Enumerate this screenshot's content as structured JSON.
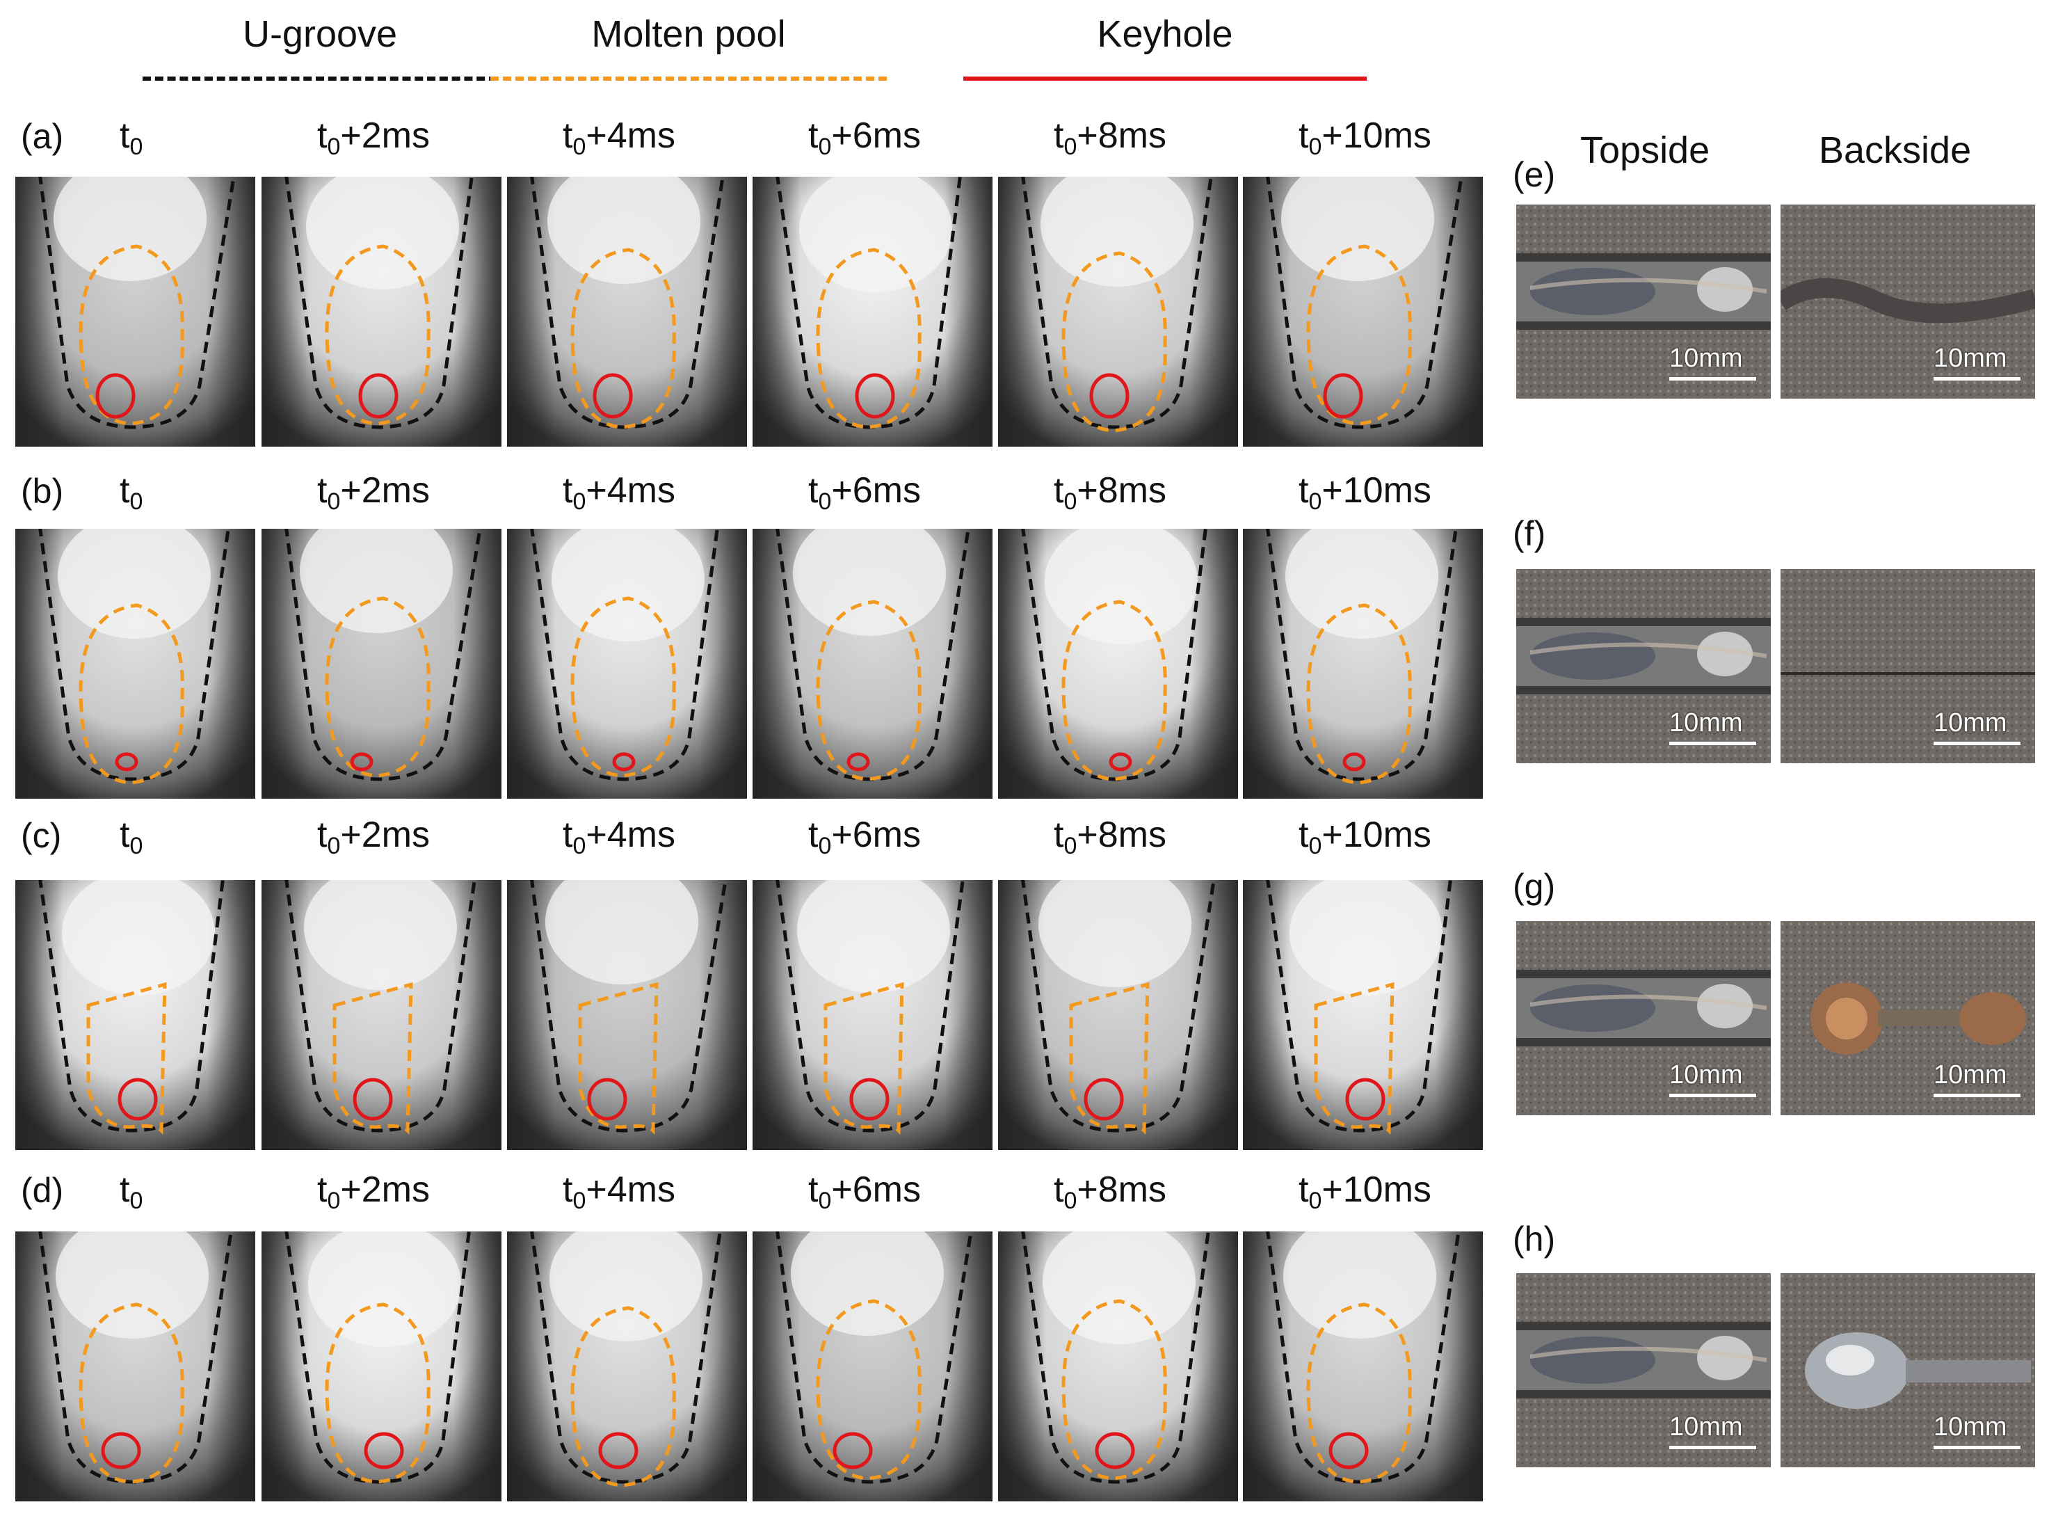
{
  "legend": [
    {
      "label": "U-groove",
      "color": "#111111",
      "style": "dashed"
    },
    {
      "label": "Molten pool",
      "color": "#f39a1e",
      "style": "dashed"
    },
    {
      "label": "Keyhole",
      "color": "#e0161b",
      "style": "solid"
    }
  ],
  "rows": [
    {
      "label": "(a)"
    },
    {
      "label": "(b)"
    },
    {
      "label": "(c)"
    },
    {
      "label": "(d)"
    }
  ],
  "times": [
    {
      "base": "t",
      "sub": "0",
      "suffix": ""
    },
    {
      "base": "t",
      "sub": "0",
      "suffix": "+2ms"
    },
    {
      "base": "t",
      "sub": "0",
      "suffix": "+4ms"
    },
    {
      "base": "t",
      "sub": "0",
      "suffix": "+6ms"
    },
    {
      "base": "t",
      "sub": "0",
      "suffix": "+8ms"
    },
    {
      "base": "t",
      "sub": "0",
      "suffix": "+10ms"
    }
  ],
  "side": {
    "topside": "Topside",
    "backside": "Backside",
    "scale": "10mm",
    "panels": [
      {
        "label": "(e)"
      },
      {
        "label": "(f)"
      },
      {
        "label": "(g)"
      },
      {
        "label": "(h)"
      }
    ]
  },
  "colors": {
    "groove": "#111111",
    "pool": "#f39a1e",
    "keyhole": "#e0161b"
  }
}
